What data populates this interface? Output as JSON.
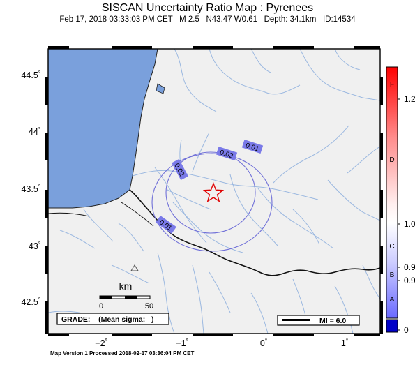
{
  "title": "SISCAN Uncertainty Ratio Map : Pyrenees",
  "subtitle": "Feb 17, 2018 03:33:03 PM CET   M 2.5   N43.47 W0.61   Depth: 34.1km   ID:14534",
  "footer": "Map Version 1 Processed 2018-02-17 03:36:04 PM CET",
  "axes": {
    "y_ticks": [
      {
        "value": "44.5",
        "deg": "°"
      },
      {
        "value": "44",
        "deg": "°"
      },
      {
        "value": "43.5",
        "deg": "°"
      },
      {
        "value": "43",
        "deg": "°"
      },
      {
        "value": "42.5",
        "deg": "°"
      }
    ],
    "x_ticks": [
      {
        "value": "−2",
        "deg": "°"
      },
      {
        "value": "−1",
        "deg": "°"
      },
      {
        "value": "0",
        "deg": "°"
      },
      {
        "value": "1",
        "deg": "°"
      }
    ]
  },
  "contours": [
    {
      "label": "0.01"
    },
    {
      "label": "0.02"
    },
    {
      "label": "0.02"
    },
    {
      "label": "0.01"
    }
  ],
  "scale_bar": {
    "unit": "km",
    "min": "0",
    "max": "50"
  },
  "grade_box": "GRADE: – (Mean sigma: –)",
  "mi_box": "MI = 6.0",
  "colorbar": {
    "letters": [
      "F",
      "D",
      "C",
      "B",
      "A"
    ],
    "values": [
      "1.2",
      "1.0",
      "0.9",
      "0.9",
      "0"
    ]
  },
  "colors": {
    "land": "#f0f0f0",
    "sea": "#7aa0dc",
    "rivers": "#9bb8e0",
    "contour": "#7070d8",
    "epicenter": "#e00000"
  },
  "icons": {
    "epicenter": "star-icon",
    "station": "triangle-icon"
  }
}
